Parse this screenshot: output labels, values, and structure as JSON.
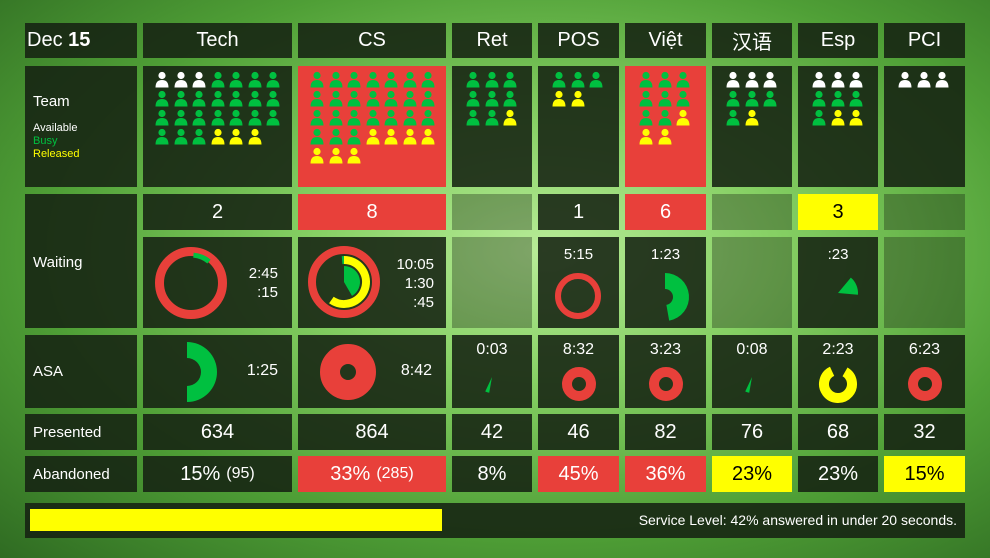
{
  "date": {
    "month": "Dec",
    "day": "15"
  },
  "queues": [
    {
      "name": "Tech"
    },
    {
      "name": "CS"
    },
    {
      "name": "Ret"
    },
    {
      "name": "POS"
    },
    {
      "name": "Việt"
    },
    {
      "name": "汉语"
    },
    {
      "name": "Esp"
    },
    {
      "name": "PCI"
    }
  ],
  "row_labels": {
    "team": "Team",
    "available": "Available",
    "busy": "Busy",
    "released": "Released",
    "waiting": "Waiting",
    "asa": "ASA",
    "presented": "Presented",
    "abandoned": "Abandoned"
  },
  "team": [
    {
      "cols": 6,
      "members": [
        "white",
        "white",
        "white",
        "green",
        "green",
        "green",
        "green",
        "green",
        "green",
        "green",
        "green",
        "green",
        "green",
        "green",
        "green",
        "green",
        "green",
        "green",
        "green",
        "green",
        "green",
        "green",
        "green",
        "green",
        "yellow",
        "yellow",
        "yellow"
      ]
    },
    {
      "cols": 6,
      "members": [
        "green",
        "green",
        "green",
        "green",
        "green",
        "green",
        "green",
        "green",
        "green",
        "green",
        "green",
        "green",
        "green",
        "green",
        "green",
        "green",
        "green",
        "green",
        "green",
        "green",
        "green",
        "green",
        "green",
        "green",
        "yellow",
        "yellow",
        "yellow",
        "yellow",
        "yellow",
        "yellow",
        "yellow"
      ]
    },
    {
      "cols": 3,
      "members": [
        "green",
        "green",
        "green",
        "green",
        "green",
        "green",
        "green",
        "green",
        "yellow"
      ]
    },
    {
      "cols": 3,
      "members": [
        "green",
        "green",
        "green",
        "yellow",
        "yellow"
      ]
    },
    {
      "cols": 3,
      "members": [
        "green",
        "green",
        "green",
        "green",
        "green",
        "green",
        "green",
        "green",
        "yellow",
        "yellow",
        "yellow"
      ]
    },
    {
      "cols": 3,
      "members": [
        "white",
        "white",
        "white",
        "green",
        "green",
        "green",
        "green",
        "yellow"
      ]
    },
    {
      "cols": 3,
      "members": [
        "white",
        "white",
        "white",
        "green",
        "green",
        "green",
        "green",
        "yellow",
        "yellow"
      ]
    },
    {
      "cols": 3,
      "members": [
        "white",
        "white",
        "white"
      ]
    }
  ],
  "waiting": [
    {
      "count": "2",
      "status": "normal",
      "times": [
        "2:45",
        ":15"
      ]
    },
    {
      "count": "8",
      "status": "red",
      "times": [
        "10:05",
        "1:30",
        ":45"
      ]
    },
    {
      "count": "",
      "status": "empty",
      "times": []
    },
    {
      "count": "1",
      "status": "normal",
      "times": [
        "5:15"
      ]
    },
    {
      "count": "6",
      "status": "red",
      "times": [
        "1:23"
      ]
    },
    {
      "count": "",
      "status": "empty",
      "times": []
    },
    {
      "count": "3",
      "status": "yellow",
      "times": [
        ":23"
      ]
    },
    {
      "count": "",
      "status": "empty",
      "times": []
    }
  ],
  "asa": [
    {
      "value": "1:25"
    },
    {
      "value": "8:42"
    },
    {
      "value": "0:03"
    },
    {
      "value": "8:32"
    },
    {
      "value": "3:23"
    },
    {
      "value": "0:08"
    },
    {
      "value": "2:23"
    },
    {
      "value": "6:23"
    }
  ],
  "presented": [
    "634",
    "864",
    "42",
    "46",
    "82",
    "76",
    "68",
    "32"
  ],
  "abandoned": [
    {
      "pct": "15%",
      "count": "(95)",
      "status": "normal"
    },
    {
      "pct": "33%",
      "count": "(285)",
      "status": "red"
    },
    {
      "pct": "8%",
      "count": "",
      "status": "normal"
    },
    {
      "pct": "45%",
      "count": "",
      "status": "red"
    },
    {
      "pct": "36%",
      "count": "",
      "status": "red"
    },
    {
      "pct": "23%",
      "count": "",
      "status": "yellow"
    },
    {
      "pct": "23%",
      "count": "",
      "status": "normal"
    },
    {
      "pct": "15%",
      "count": "",
      "status": "yellow"
    }
  ],
  "service_level": {
    "text": "Service Level: 42% answered in under 20 seconds.",
    "fraction": 0.42
  },
  "colors": {
    "red": "#e8403a",
    "green": "#00c040",
    "yellow": "#ffff00",
    "white": "#ffffff",
    "panel": "#16220f"
  }
}
